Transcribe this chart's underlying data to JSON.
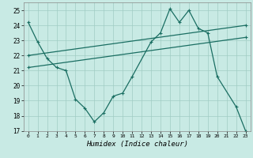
{
  "xlabel": "Humidex (Indice chaleur)",
  "bg_color": "#c8eae4",
  "grid_color": "#a0ccc4",
  "line_color": "#1a6e62",
  "xlim": [
    -0.5,
    23.5
  ],
  "ylim": [
    17,
    25.5
  ],
  "xticks": [
    0,
    1,
    2,
    3,
    4,
    5,
    6,
    7,
    8,
    9,
    10,
    11,
    12,
    13,
    14,
    15,
    16,
    17,
    18,
    19,
    20,
    21,
    22,
    23
  ],
  "yticks": [
    17,
    18,
    19,
    20,
    21,
    22,
    23,
    24,
    25
  ],
  "series1_x": [
    0,
    1,
    2,
    3,
    4,
    5,
    6,
    7,
    8,
    9,
    10,
    11,
    13,
    14,
    15,
    16,
    17,
    18,
    19,
    20,
    22,
    23
  ],
  "series1_y": [
    24.2,
    22.9,
    21.8,
    21.2,
    21.0,
    19.1,
    18.5,
    17.6,
    18.2,
    19.3,
    19.5,
    20.6,
    22.9,
    23.5,
    25.1,
    24.2,
    25.0,
    23.8,
    23.5,
    20.6,
    18.6,
    17.0
  ],
  "series2_x": [
    0,
    23
  ],
  "series2_y": [
    22.0,
    24.0
  ],
  "series3_x": [
    0,
    23
  ],
  "series3_y": [
    21.2,
    23.2
  ],
  "marker": "+"
}
